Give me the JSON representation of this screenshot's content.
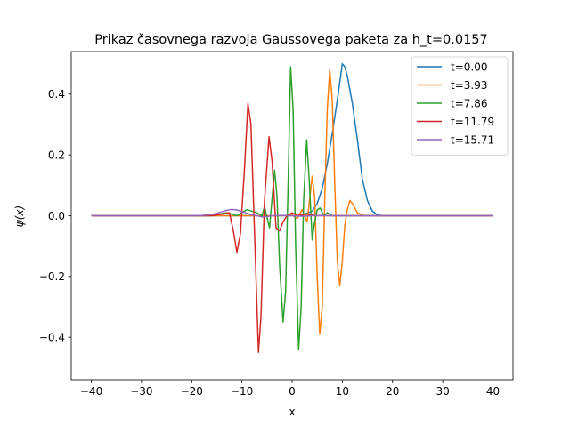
{
  "chart_data": {
    "type": "line",
    "title": "Prikaz časovnega razvoja Gaussovega paketa za h_t=0.0157",
    "xlabel": "x",
    "ylabel": "ψ(x)",
    "xlim": [
      -44,
      44
    ],
    "ylim": [
      -0.54,
      0.54
    ],
    "x_ticks": [
      -40,
      -30,
      -20,
      -10,
      0,
      10,
      20,
      30,
      40
    ],
    "x_tick_labels": [
      "−40",
      "−30",
      "−20",
      "−10",
      "0",
      "10",
      "20",
      "30",
      "40"
    ],
    "y_ticks": [
      -0.4,
      -0.2,
      0.0,
      0.2,
      0.4
    ],
    "y_tick_labels": [
      "−0.4",
      "−0.2",
      "0.0",
      "0.2",
      "0.4"
    ],
    "grid": false,
    "legend_position": "top-right",
    "series": [
      {
        "name": "t=0.00",
        "color": "#1f77b4",
        "points": [
          [
            -40,
            0
          ],
          [
            0,
            0
          ],
          [
            2,
            0.002
          ],
          [
            4,
            0.015
          ],
          [
            5,
            0.04
          ],
          [
            6,
            0.09
          ],
          [
            7,
            0.17
          ],
          [
            8,
            0.27
          ],
          [
            9,
            0.38
          ],
          [
            9.5,
            0.44
          ],
          [
            10,
            0.5
          ],
          [
            10.5,
            0.49
          ],
          [
            11,
            0.46
          ],
          [
            12,
            0.37
          ],
          [
            13,
            0.25
          ],
          [
            14,
            0.12
          ],
          [
            15,
            0.05
          ],
          [
            16,
            0.015
          ],
          [
            17,
            0.003
          ],
          [
            18,
            0
          ],
          [
            40,
            0
          ]
        ]
      },
      {
        "name": "t=3.93",
        "color": "#ff7f0e",
        "points": [
          [
            -40,
            0
          ],
          [
            -2,
            0
          ],
          [
            0,
            0.003
          ],
          [
            1,
            -0.01
          ],
          [
            2,
            0.02
          ],
          [
            3,
            -0.02
          ],
          [
            4,
            0.13
          ],
          [
            4.5,
            0.06
          ],
          [
            5,
            -0.2
          ],
          [
            5.5,
            -0.39
          ],
          [
            6,
            -0.3
          ],
          [
            6.5,
            0.05
          ],
          [
            7,
            0.35
          ],
          [
            7.5,
            0.48
          ],
          [
            8,
            0.38
          ],
          [
            8.5,
            0.1
          ],
          [
            9,
            -0.15
          ],
          [
            9.5,
            -0.23
          ],
          [
            10,
            -0.15
          ],
          [
            10.5,
            -0.03
          ],
          [
            11,
            0.02
          ],
          [
            11.5,
            0.05
          ],
          [
            12,
            0.04
          ],
          [
            13,
            0.01
          ],
          [
            14,
            0.002
          ],
          [
            15,
            0
          ],
          [
            40,
            0
          ]
        ]
      },
      {
        "name": "t=7.86",
        "color": "#2ca02c",
        "points": [
          [
            -40,
            0
          ],
          [
            -16,
            0
          ],
          [
            -13,
            0.01
          ],
          [
            -11,
            0
          ],
          [
            -9,
            0.02
          ],
          [
            -7,
            0.01
          ],
          [
            -6,
            0
          ],
          [
            -5.5,
            0.03
          ],
          [
            -4.5,
            -0.04
          ],
          [
            -3.5,
            0.15
          ],
          [
            -3,
            0.06
          ],
          [
            -2.5,
            -0.16
          ],
          [
            -1.8,
            -0.35
          ],
          [
            -1.3,
            -0.25
          ],
          [
            -0.8,
            0.1
          ],
          [
            -0.3,
            0.49
          ],
          [
            0.2,
            0.35
          ],
          [
            0.7,
            -0.1
          ],
          [
            1.3,
            -0.44
          ],
          [
            1.8,
            -0.3
          ],
          [
            2.3,
            0.05
          ],
          [
            2.9,
            0.25
          ],
          [
            3.4,
            0.12
          ],
          [
            4,
            -0.08
          ],
          [
            4.4,
            -0.03
          ],
          [
            5,
            0.02
          ],
          [
            5.6,
            0.025
          ],
          [
            6.3,
            0
          ],
          [
            7,
            0.01
          ],
          [
            8,
            0
          ],
          [
            40,
            0
          ]
        ]
      },
      {
        "name": "t=11.79",
        "color": "#d62728",
        "points": [
          [
            -40,
            0
          ],
          [
            -16,
            0
          ],
          [
            -14,
            0.005
          ],
          [
            -12.5,
            0.01
          ],
          [
            -11.7,
            -0.05
          ],
          [
            -11,
            -0.12
          ],
          [
            -10.3,
            -0.06
          ],
          [
            -9.5,
            0.15
          ],
          [
            -8.8,
            0.37
          ],
          [
            -8.2,
            0.3
          ],
          [
            -7.5,
            -0.05
          ],
          [
            -6.7,
            -0.45
          ],
          [
            -6.2,
            -0.33
          ],
          [
            -5.5,
            0.05
          ],
          [
            -4.6,
            0.26
          ],
          [
            -4,
            0.18
          ],
          [
            -3.2,
            -0.04
          ],
          [
            -2.5,
            -0.05
          ],
          [
            -1.8,
            -0.02
          ],
          [
            -1,
            0
          ],
          [
            0,
            0.01
          ],
          [
            1,
            0
          ],
          [
            3,
            0.005
          ],
          [
            5,
            0
          ],
          [
            40,
            0
          ]
        ]
      },
      {
        "name": "t=15.71",
        "color": "#9467bd",
        "points": [
          [
            -40,
            0
          ],
          [
            -20,
            0
          ],
          [
            -18,
            0.001
          ],
          [
            -16,
            0.004
          ],
          [
            -15,
            0.008
          ],
          [
            -14,
            0.013
          ],
          [
            -13,
            0.018
          ],
          [
            -12,
            0.021
          ],
          [
            -11,
            0.019
          ],
          [
            -10,
            0.014
          ],
          [
            -9,
            0.008
          ],
          [
            -8,
            0.003
          ],
          [
            -7,
            0
          ],
          [
            -6,
            -0.004
          ],
          [
            -5,
            -0.003
          ],
          [
            -4,
            0
          ],
          [
            -2,
            0.001
          ],
          [
            0,
            0
          ],
          [
            2,
            -0.002
          ],
          [
            4,
            0
          ],
          [
            6,
            0.001
          ],
          [
            8,
            0
          ],
          [
            40,
            0
          ]
        ]
      }
    ]
  }
}
